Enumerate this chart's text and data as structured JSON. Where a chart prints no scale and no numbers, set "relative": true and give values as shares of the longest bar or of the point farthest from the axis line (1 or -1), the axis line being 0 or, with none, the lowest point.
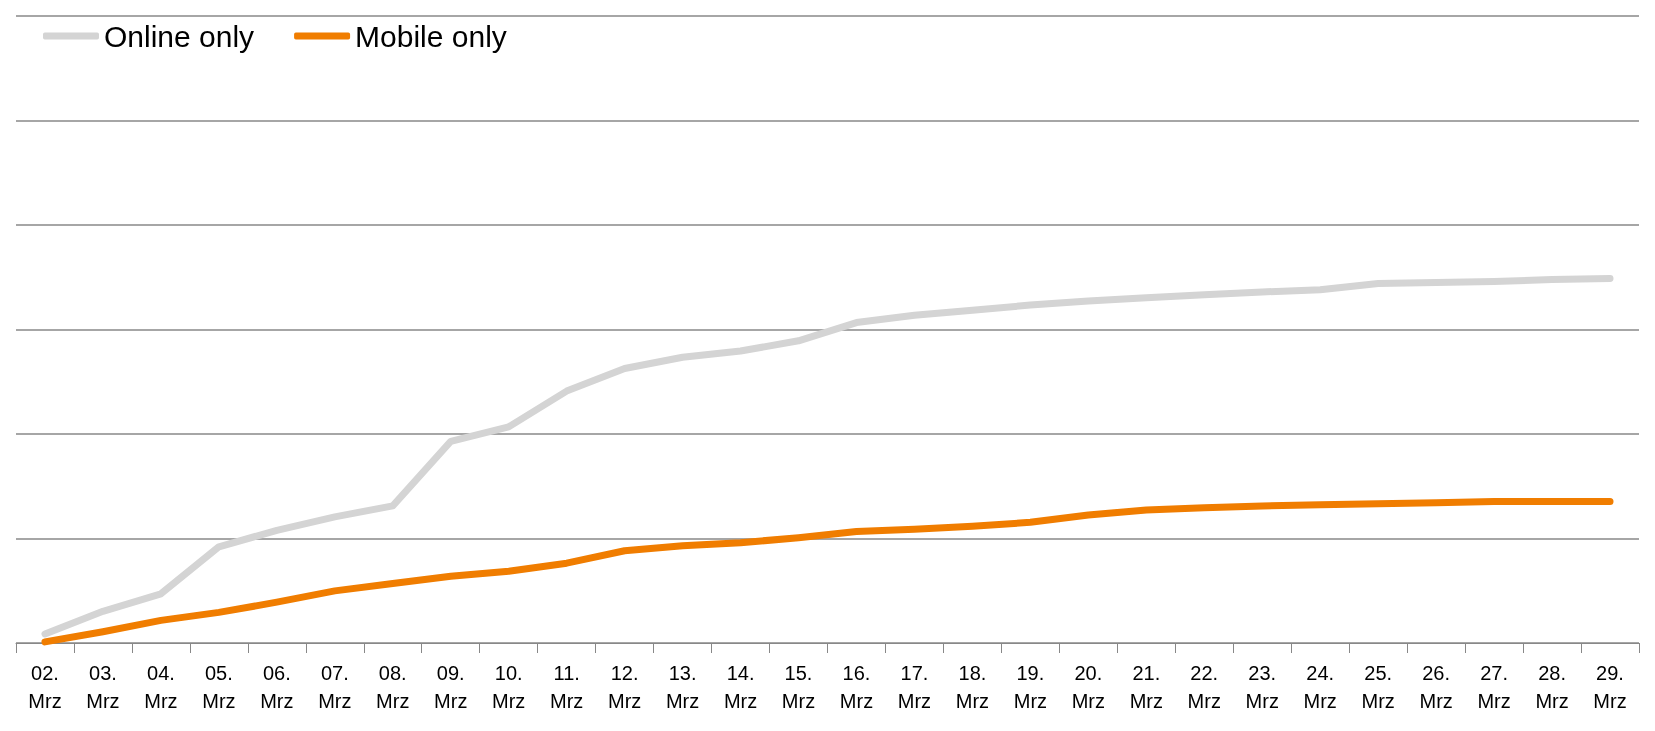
{
  "chart_data": {
    "type": "line",
    "relative": true,
    "grid": "y",
    "legend": "top left",
    "marker": "none",
    "line_style": "solid",
    "categories": [
      "02. Mrz",
      "03. Mrz",
      "04. Mrz",
      "05. Mrz",
      "06. Mrz",
      "07. Mrz",
      "08. Mrz",
      "09. Mrz",
      "10. Mrz",
      "11. Mrz",
      "12. Mrz",
      "13. Mrz",
      "14. Mrz",
      "15. Mrz",
      "16. Mrz",
      "17. Mrz",
      "18. Mrz",
      "19. Mrz",
      "20. Mrz",
      "21. Mrz",
      "22. Mrz",
      "23. Mrz",
      "24. Mrz",
      "25. Mrz",
      "26. Mrz",
      "27. Mrz",
      "28. Mrz",
      "29. Mrz"
    ],
    "series": [
      {
        "name": "Online only",
        "color": "#d4d4d4",
        "values": [
          0.025,
          0.087,
          0.135,
          0.264,
          0.309,
          0.346,
          0.376,
          0.553,
          0.593,
          0.691,
          0.753,
          0.784,
          0.801,
          0.829,
          0.879,
          0.899,
          0.913,
          0.927,
          0.938,
          0.947,
          0.955,
          0.963,
          0.969,
          0.986,
          0.989,
          0.992,
          0.997,
          1
        ]
      },
      {
        "name": "Mobile only",
        "color": "#f07d00",
        "values": [
          0.003,
          0.031,
          0.062,
          0.084,
          0.112,
          0.143,
          0.163,
          0.183,
          0.197,
          0.219,
          0.253,
          0.267,
          0.275,
          0.289,
          0.306,
          0.312,
          0.32,
          0.331,
          0.351,
          0.365,
          0.371,
          0.376,
          0.379,
          0.382,
          0.385,
          0.388,
          0.388,
          0.388
        ]
      }
    ]
  }
}
